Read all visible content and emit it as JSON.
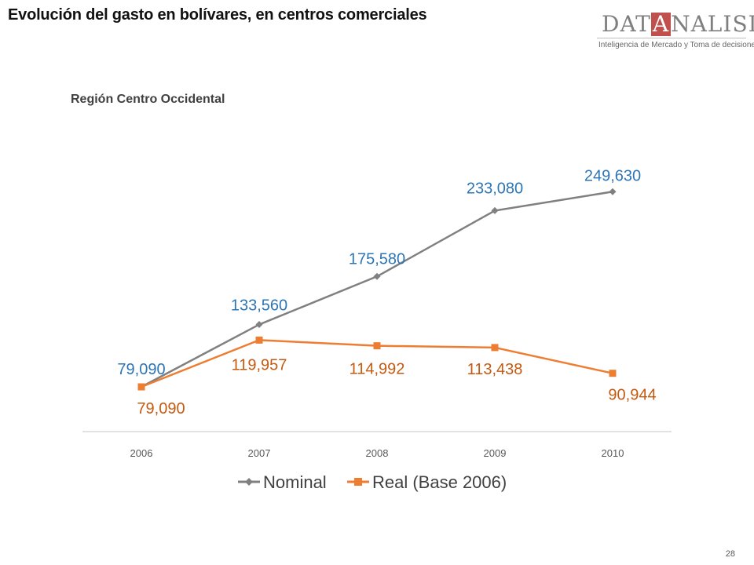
{
  "slide": {
    "title": "Evolución del gasto en bolívares, en centros comerciales",
    "page_number": "28"
  },
  "logo": {
    "word_left": "DAT",
    "word_highlight": "A",
    "word_right": "NALISIS",
    "tagline": "Inteligencia de Mercado y Toma de decisiones",
    "accent_color": "#c0504d"
  },
  "chart_data": {
    "type": "line",
    "title": "Región Centro Occidental",
    "categories": [
      "2006",
      "2007",
      "2008",
      "2009",
      "2010"
    ],
    "series": [
      {
        "name": "Nominal",
        "values": [
          79090,
          133560,
          175580,
          233080,
          249630
        ],
        "labels": [
          "79,090",
          "133,560",
          "175,580",
          "233,080",
          "249,630"
        ],
        "line_color": "#808080",
        "label_color": "#2e75b6",
        "marker": "diamond"
      },
      {
        "name": "Real (Base 2006)",
        "values": [
          79090,
          119957,
          114992,
          113438,
          90944
        ],
        "labels": [
          "79,090",
          "119,957",
          "114,992",
          "113,438",
          "90,944"
        ],
        "line_color": "#ed7d31",
        "label_color": "#c55a11",
        "marker": "square"
      }
    ],
    "ylim": [
      40000,
      280000
    ],
    "grid": false,
    "legend": "bottom"
  }
}
